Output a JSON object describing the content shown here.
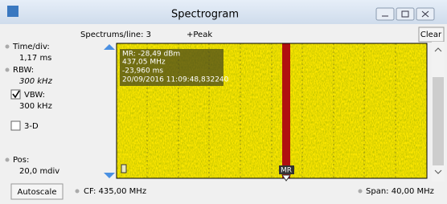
{
  "window": {
    "title": "Spectrogram"
  },
  "toolbar": {
    "spectrums_per_line": "Spectrums/line: 3",
    "detector": "+Peak",
    "clear_button": "Clear"
  },
  "settings": {
    "time_div_label": "Time/div:",
    "time_div_value": "1,17 ms",
    "rbw_label": "RBW:",
    "rbw_value": "300 kHz",
    "vbw_label": "VBW:",
    "vbw_value": "300 kHz",
    "three_d_label": "3-D",
    "pos_label": "Pos:",
    "pos_value": "20,0 mdiv",
    "autoscale_button": "Autoscale"
  },
  "marker": {
    "lines": [
      "MR: -28,49 dBm",
      "437,05 MHz",
      "-23,960 ms",
      "20/09/2016 11:09:48,832240"
    ],
    "label": "MR"
  },
  "footer": {
    "center_frequency": "CF: 435,00 MHz",
    "span": "Span: 40,00 MHz"
  }
}
